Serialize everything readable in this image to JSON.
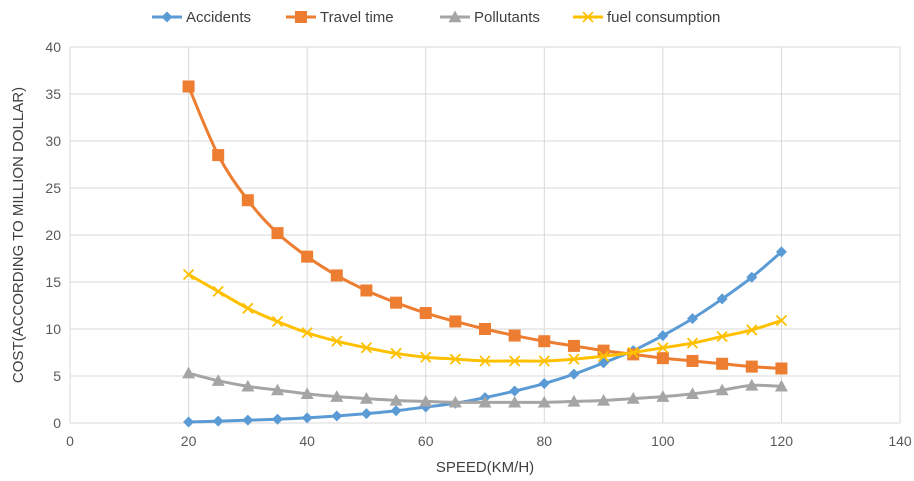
{
  "chart_data": {
    "type": "line",
    "xlabel": "SPEED(KM/H)",
    "ylabel": "COST(ACCORDING TO MILLION DOLLAR)",
    "xlim": [
      0,
      140
    ],
    "ylim": [
      0,
      40
    ],
    "x_ticks": [
      0,
      20,
      40,
      60,
      80,
      100,
      120,
      140
    ],
    "y_ticks": [
      0,
      5,
      10,
      15,
      20,
      25,
      30,
      35,
      40
    ],
    "grid": true,
    "legend_position": "top",
    "x": [
      20,
      25,
      30,
      35,
      40,
      45,
      50,
      55,
      60,
      65,
      70,
      75,
      80,
      85,
      90,
      95,
      100,
      105,
      110,
      115,
      120
    ],
    "series": [
      {
        "name": "Accidents",
        "marker": "diamond",
        "color": "#5b9bd5",
        "values": [
          0.1,
          0.2,
          0.3,
          0.4,
          0.55,
          0.75,
          1.0,
          1.3,
          1.7,
          2.1,
          2.7,
          3.4,
          4.2,
          5.2,
          6.4,
          7.7,
          9.3,
          11.1,
          13.2,
          15.5,
          18.2
        ]
      },
      {
        "name": "Travel time",
        "marker": "square",
        "color": "#ed7d31",
        "values": [
          35.8,
          28.5,
          23.7,
          20.2,
          17.7,
          15.7,
          14.1,
          12.8,
          11.7,
          10.8,
          10.0,
          9.3,
          8.7,
          8.2,
          7.7,
          7.3,
          6.9,
          6.6,
          6.3,
          6.0,
          5.8
        ]
      },
      {
        "name": "Pollutants",
        "marker": "triangle",
        "color": "#a5a5a5",
        "values": [
          5.3,
          4.5,
          3.9,
          3.5,
          3.1,
          2.8,
          2.6,
          2.4,
          2.3,
          2.2,
          2.2,
          2.2,
          2.2,
          2.3,
          2.4,
          2.6,
          2.8,
          3.1,
          3.5,
          4.0,
          3.9
        ]
      },
      {
        "name": "fuel consumption",
        "marker": "x",
        "color": "#ffc000",
        "values": [
          15.8,
          14.0,
          12.2,
          10.8,
          9.6,
          8.7,
          8.0,
          7.4,
          7.0,
          6.8,
          6.6,
          6.6,
          6.6,
          6.8,
          7.1,
          7.5,
          8.0,
          8.5,
          9.2,
          9.9,
          10.9
        ]
      }
    ]
  }
}
